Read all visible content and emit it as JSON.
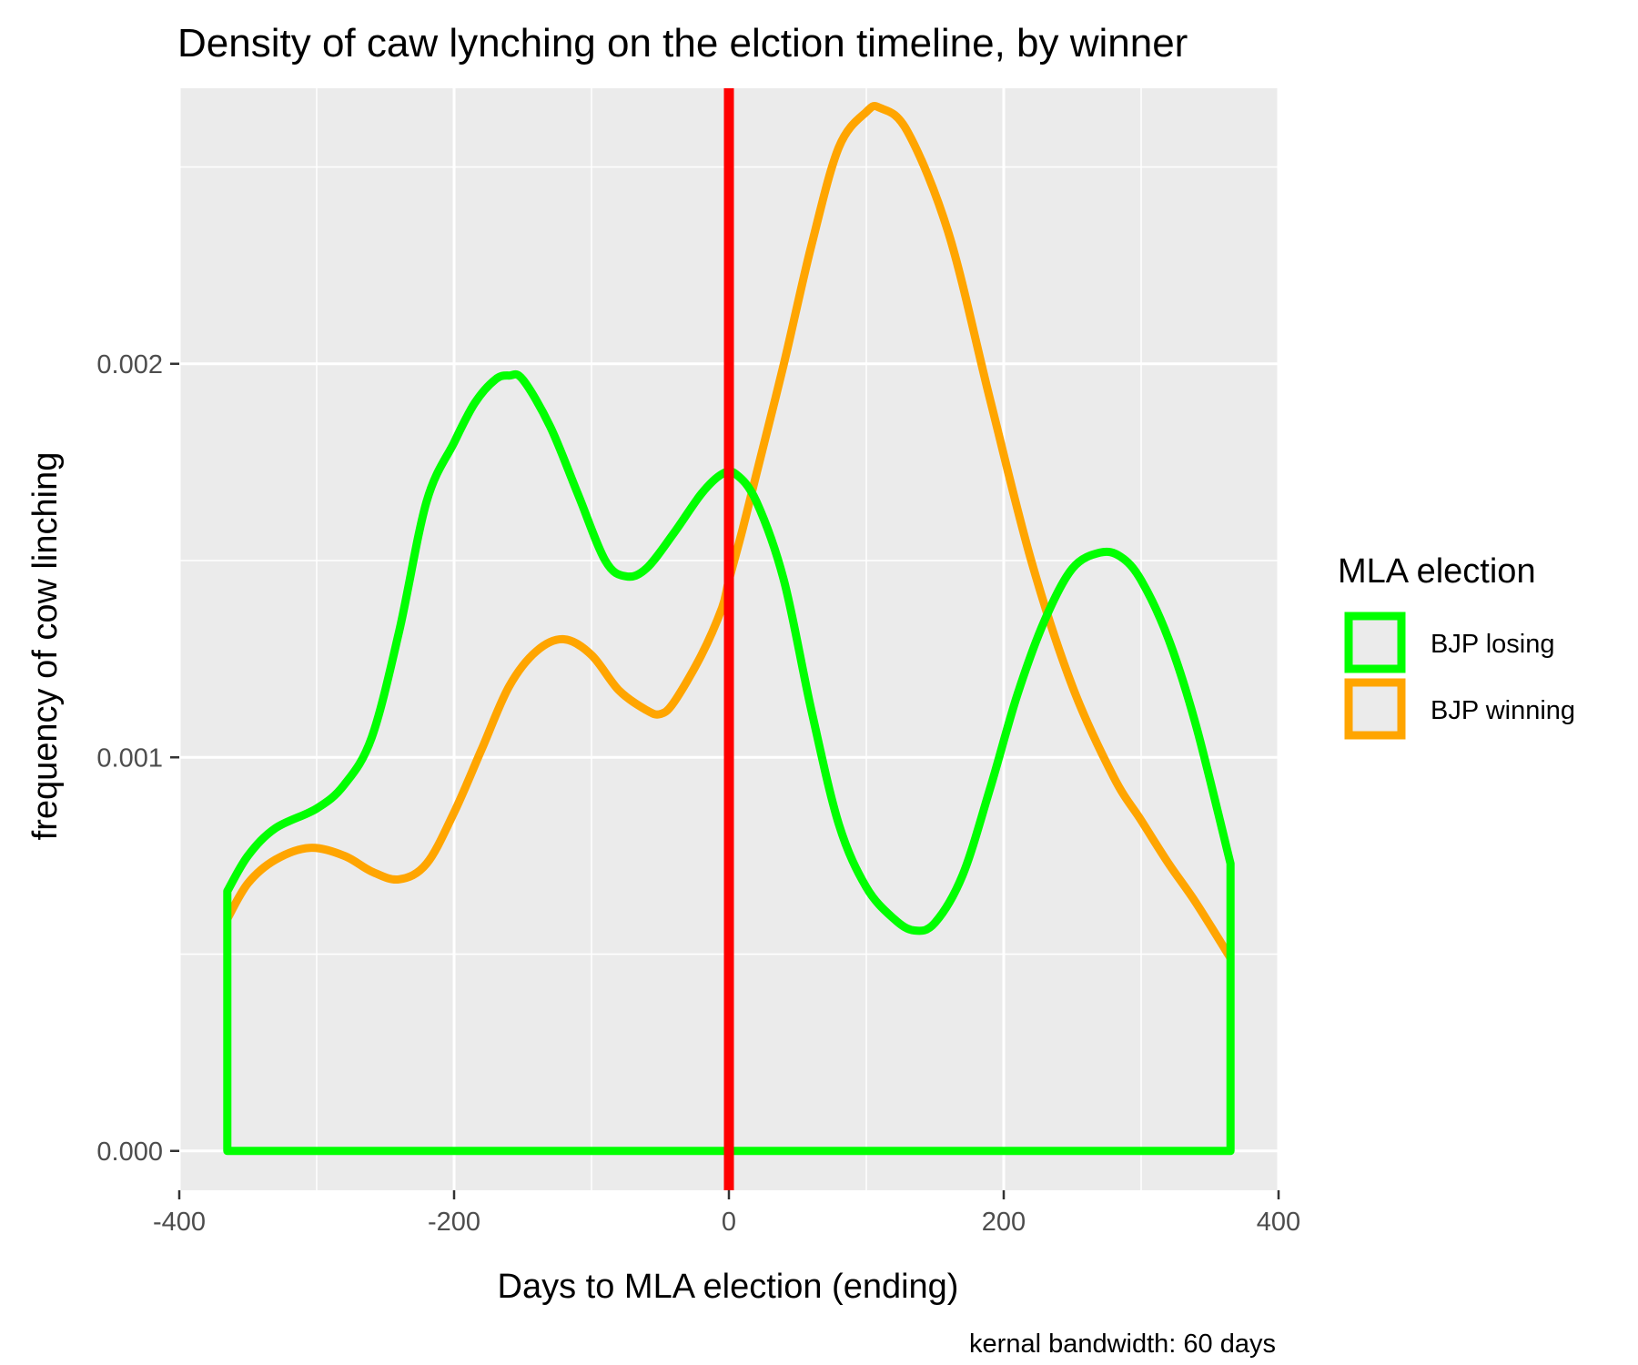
{
  "chart_data": {
    "type": "line",
    "title": "Density of caw lynching on the elction timeline, by winner",
    "xlabel": "Days to MLA election (ending)",
    "ylabel": "frequency of cow linching",
    "caption": "kernal bandwidth: 60 days",
    "xlim": [
      -400,
      400
    ],
    "ylim": [
      -0.0001,
      0.0027
    ],
    "x_ticks": [
      -400,
      -200,
      0,
      200,
      400
    ],
    "x_tick_labels": [
      "-400",
      "-200",
      "0",
      "200",
      "400"
    ],
    "y_ticks": [
      0,
      0.001,
      0.002
    ],
    "y_tick_labels": [
      "0.000",
      "0.001",
      "0.002"
    ],
    "grid": true,
    "reference_line": {
      "x": 0,
      "color": "#ff0000"
    },
    "legend": {
      "title": "MLA election",
      "position": "right",
      "entries": [
        {
          "label": "BJP losing",
          "color": "#00ff00"
        },
        {
          "label": "BJP winning",
          "color": "#ffa500"
        }
      ]
    },
    "series": [
      {
        "name": "BJP losing",
        "color": "#00ff00",
        "closed_to_zero": true,
        "x": [
          -365,
          -350,
          -330,
          -300,
          -280,
          -260,
          -240,
          -220,
          -200,
          -185,
          -170,
          -160,
          -150,
          -130,
          -110,
          -90,
          -75,
          -60,
          -40,
          -20,
          -5,
          5,
          20,
          40,
          60,
          80,
          100,
          120,
          135,
          150,
          170,
          190,
          210,
          230,
          250,
          270,
          285,
          300,
          320,
          340,
          365
        ],
        "y": [
          0.00066,
          0.00075,
          0.00082,
          0.00087,
          0.00093,
          0.00105,
          0.00132,
          0.00165,
          0.0018,
          0.0019,
          0.00196,
          0.00197,
          0.00196,
          0.00184,
          0.00167,
          0.0015,
          0.00146,
          0.00148,
          0.00157,
          0.00167,
          0.00172,
          0.00172,
          0.00165,
          0.00145,
          0.00112,
          0.00083,
          0.00067,
          0.00059,
          0.00056,
          0.00058,
          0.0007,
          0.00092,
          0.00116,
          0.00135,
          0.00148,
          0.00152,
          0.00151,
          0.00145,
          0.0013,
          0.00108,
          0.00073
        ]
      },
      {
        "name": "BJP winning",
        "color": "#ffa500",
        "closed_to_zero": false,
        "x": [
          -365,
          -350,
          -330,
          -305,
          -280,
          -260,
          -240,
          -220,
          -200,
          -180,
          -160,
          -140,
          -120,
          -100,
          -80,
          -60,
          -50,
          -40,
          -20,
          -5,
          0,
          10,
          20,
          40,
          60,
          80,
          100,
          110,
          130,
          160,
          190,
          220,
          250,
          280,
          300,
          320,
          340,
          365
        ],
        "y": [
          0.00059,
          0.00068,
          0.00074,
          0.00077,
          0.00075,
          0.00071,
          0.00069,
          0.00073,
          0.00086,
          0.00102,
          0.00118,
          0.00127,
          0.0013,
          0.00126,
          0.00117,
          0.00112,
          0.00111,
          0.00114,
          0.00126,
          0.00138,
          0.00145,
          0.00158,
          0.00172,
          0.002,
          0.0023,
          0.00255,
          0.00264,
          0.00265,
          0.00259,
          0.00233,
          0.00191,
          0.0015,
          0.00118,
          0.00095,
          0.00084,
          0.00073,
          0.00063,
          0.00049
        ]
      }
    ]
  }
}
